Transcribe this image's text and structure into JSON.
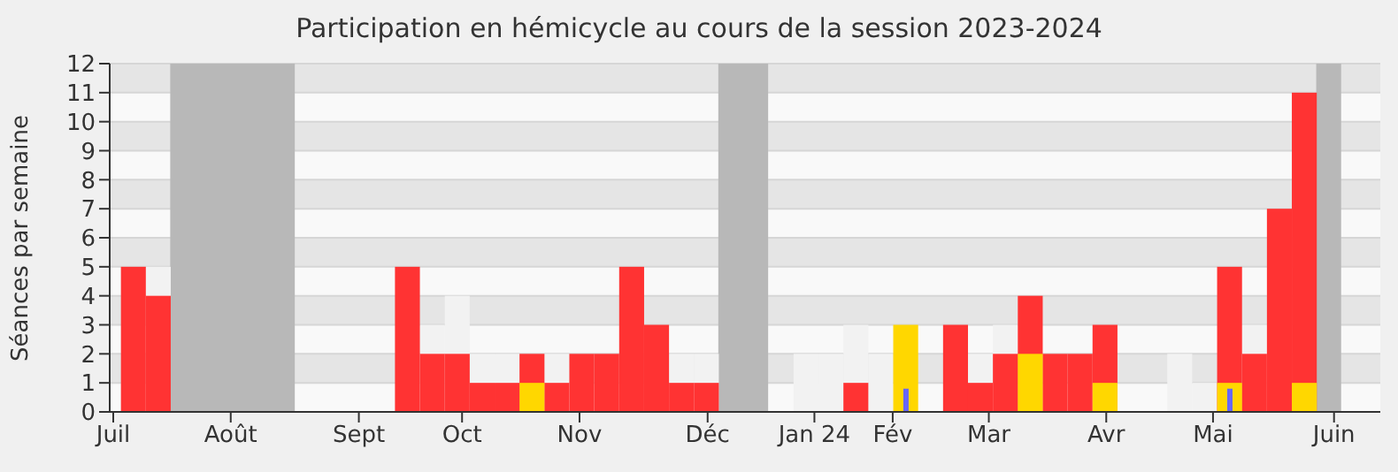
{
  "chart_data": {
    "type": "bar",
    "title": "Participation en hémicycle au cours de la session 2023-2024",
    "ylabel": "Séances par semaine",
    "x": [
      "2023-07-03",
      "2023-07-10",
      "2023-07-17",
      "2023-07-24",
      "2023-07-31",
      "2023-08-07",
      "2023-08-14",
      "2023-08-21",
      "2023-08-28",
      "2023-09-04",
      "2023-09-11",
      "2023-09-18",
      "2023-09-25",
      "2023-10-02",
      "2023-10-09",
      "2023-10-16",
      "2023-10-23",
      "2023-10-30",
      "2023-11-06",
      "2023-11-13",
      "2023-11-20",
      "2023-11-27",
      "2023-12-04",
      "2023-12-11",
      "2023-12-18",
      "2023-12-25",
      "2024-01-01",
      "2024-01-08",
      "2024-01-15",
      "2024-01-22",
      "2024-01-29",
      "2024-02-05",
      "2024-02-12",
      "2024-02-19",
      "2024-02-26",
      "2024-03-04",
      "2024-03-11",
      "2024-03-18",
      "2024-03-25",
      "2024-04-01",
      "2024-04-08",
      "2024-04-15",
      "2024-04-22",
      "2024-04-29",
      "2024-05-06",
      "2024-05-13",
      "2024-05-20",
      "2024-05-27"
    ],
    "series": [
      {
        "color": "#f2f2f2",
        "values": [
          null,
          5,
          null,
          null,
          null,
          null,
          null,
          null,
          null,
          null,
          null,
          null,
          3,
          4,
          2,
          2,
          null,
          2,
          null,
          null,
          null,
          null,
          2,
          2,
          null,
          null,
          null,
          2,
          2,
          3,
          2,
          null,
          null,
          null,
          2,
          3,
          null,
          null,
          null,
          null,
          null,
          null,
          2,
          1,
          null,
          3,
          null,
          null
        ]
      },
      {
        "color": "#ff3333",
        "values": [
          5,
          4,
          null,
          null,
          null,
          null,
          null,
          null,
          null,
          null,
          null,
          5,
          2,
          2,
          1,
          1,
          2,
          1,
          2,
          2,
          5,
          3,
          1,
          1,
          null,
          null,
          null,
          null,
          null,
          1,
          null,
          null,
          null,
          3,
          1,
          2,
          4,
          2,
          2,
          3,
          null,
          null,
          null,
          null,
          5,
          2,
          7,
          11
        ]
      },
      {
        "color": "#ffd700",
        "values": [
          null,
          null,
          null,
          null,
          null,
          null,
          null,
          null,
          null,
          null,
          null,
          null,
          null,
          null,
          null,
          null,
          1,
          null,
          null,
          null,
          null,
          null,
          null,
          null,
          null,
          null,
          null,
          null,
          null,
          null,
          null,
          3,
          null,
          null,
          null,
          null,
          2,
          null,
          null,
          1,
          null,
          null,
          null,
          null,
          1,
          null,
          null,
          1
        ]
      },
      {
        "color": "#6666ff",
        "values": [
          null,
          null,
          null,
          null,
          null,
          null,
          null,
          null,
          null,
          null,
          null,
          null,
          null,
          null,
          null,
          null,
          null,
          null,
          null,
          null,
          null,
          null,
          null,
          null,
          null,
          null,
          null,
          null,
          null,
          null,
          null,
          0.8,
          null,
          null,
          null,
          null,
          null,
          null,
          null,
          null,
          null,
          null,
          null,
          null,
          0.8,
          null,
          null,
          null
        ]
      }
    ],
    "bands": [
      {
        "axis": "x",
        "from": "2023-07-17",
        "to": "2023-08-21",
        "color": "#b8b8b8"
      },
      {
        "axis": "x",
        "from": "2023-12-18",
        "to": "2024-01-01",
        "color": "#b8b8b8"
      },
      {
        "axis": "x",
        "from": "2024-06-03",
        "to": "2024-06-10",
        "color": "#b8b8b8"
      }
    ],
    "xlim": [
      "2023-06-30",
      "2024-06-21"
    ],
    "xticks": [
      {
        "value": "2023-07-01",
        "label": "Juil"
      },
      {
        "value": "2023-08-03",
        "label": "Août"
      },
      {
        "value": "2023-09-08",
        "label": "Sept"
      },
      {
        "value": "2023-10-07",
        "label": "Oct"
      },
      {
        "value": "2023-11-09",
        "label": "Nov"
      },
      {
        "value": "2023-12-15",
        "label": "Déc"
      },
      {
        "value": "2024-01-14",
        "label": "Jan 24"
      },
      {
        "value": "2024-02-05",
        "label": "Fév"
      },
      {
        "value": "2024-03-03",
        "label": "Mar"
      },
      {
        "value": "2024-04-05",
        "label": "Avr"
      },
      {
        "value": "2024-05-05",
        "label": "Mai"
      },
      {
        "value": "2024-06-08",
        "label": "Juin"
      }
    ],
    "ylim": [
      0,
      12
    ],
    "yticks": [
      0,
      1,
      2,
      3,
      4,
      5,
      6,
      7,
      8,
      9,
      10,
      11,
      12
    ],
    "grid": "y"
  }
}
